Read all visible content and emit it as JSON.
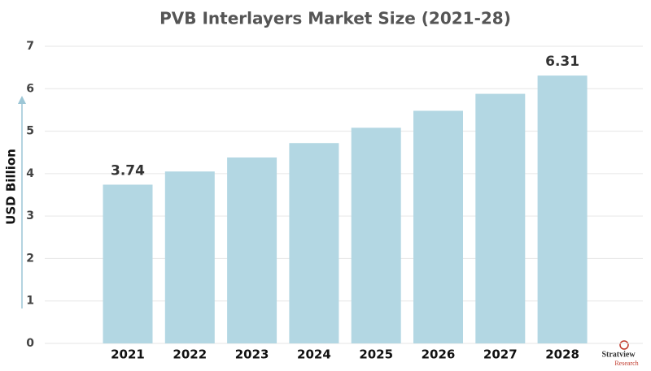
{
  "chart_data": {
    "type": "bar",
    "title": "PVB Interlayers Market Size (2021-28)",
    "y_label": "USD Billion",
    "categories": [
      "2021",
      "2022",
      "2023",
      "2024",
      "2025",
      "2026",
      "2027",
      "2028"
    ],
    "values": [
      3.74,
      4.05,
      4.38,
      4.72,
      5.08,
      5.48,
      5.88,
      6.31
    ],
    "value_labels": [
      "3.74",
      null,
      null,
      null,
      null,
      null,
      null,
      "6.31"
    ],
    "color": "#b3d7e3",
    "ylim": [
      0,
      7
    ],
    "yticks": [
      0,
      1,
      2,
      3,
      4,
      5,
      6,
      7
    ],
    "grid": true,
    "logo": [
      "Stratview",
      "Research"
    ]
  }
}
